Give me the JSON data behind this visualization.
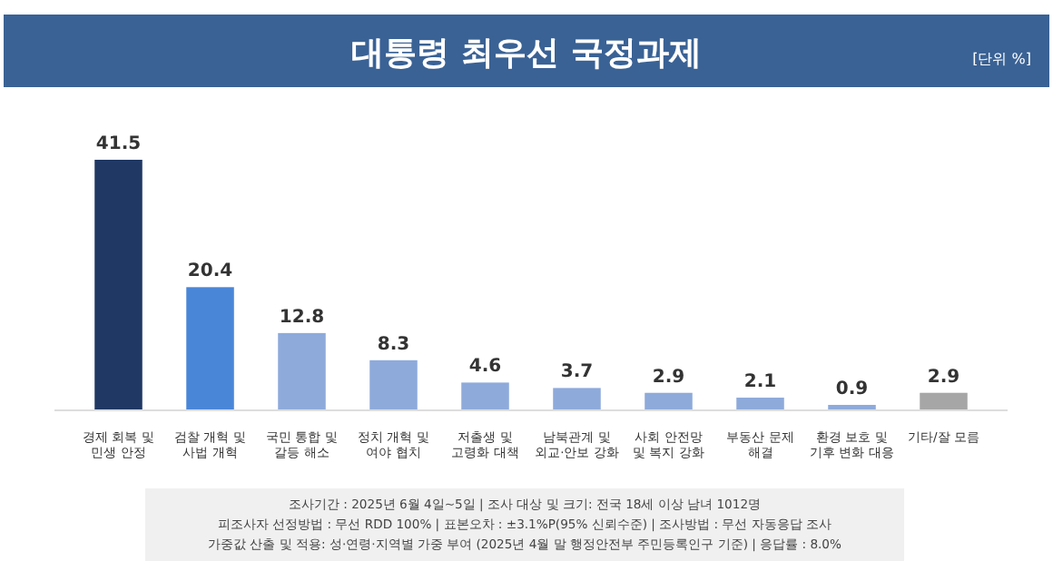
{
  "chart_data": {
    "type": "bar",
    "title": "대통령 최우선 국정과제",
    "subtitle": "[단위 %]",
    "categories": [
      "경제 회복 및\n민생 안정",
      "검찰 개혁 및\n사법 개혁",
      "국민 통합 및\n갈등 해소",
      "정치 개혁 및\n여야 협치",
      "저출생 및\n고령화 대책",
      "남북관계 및\n외교·안보 강화",
      "사회 안전망\n및 복지 강화",
      "부동산 문제\n해결",
      "환경 보호 및\n기후 변화 대응",
      "기타/잘 모름"
    ],
    "values": [
      41.5,
      20.4,
      12.8,
      8.3,
      4.6,
      3.7,
      2.9,
      2.1,
      0.9,
      2.9
    ],
    "colors": [
      "#1f3864",
      "#4a86d8",
      "#8eaadb",
      "#8eaadb",
      "#8eaadb",
      "#8eaadb",
      "#8eaadb",
      "#8eaadb",
      "#8eaadb",
      "#a6a6a6"
    ],
    "data_labels": true,
    "annotations": [
      "조사기간 : 2025년 6월 4일~5일 | 조사 대상 및 크기: 전국 18세 이상 남녀 1012명",
      "피조사자 선정방법 : 무선 RDD 100% | 표본오차 : ±3.1%P(95% 신뢰수준) | 조사방법 : 무선 자동응답 조사",
      "가중값 산출 및 적용: 성·연령·지역별 가중 부여 (2025년 4월 말 행정안전부 주민등록인구 기준) | 응답률 : 8.0%"
    ]
  }
}
